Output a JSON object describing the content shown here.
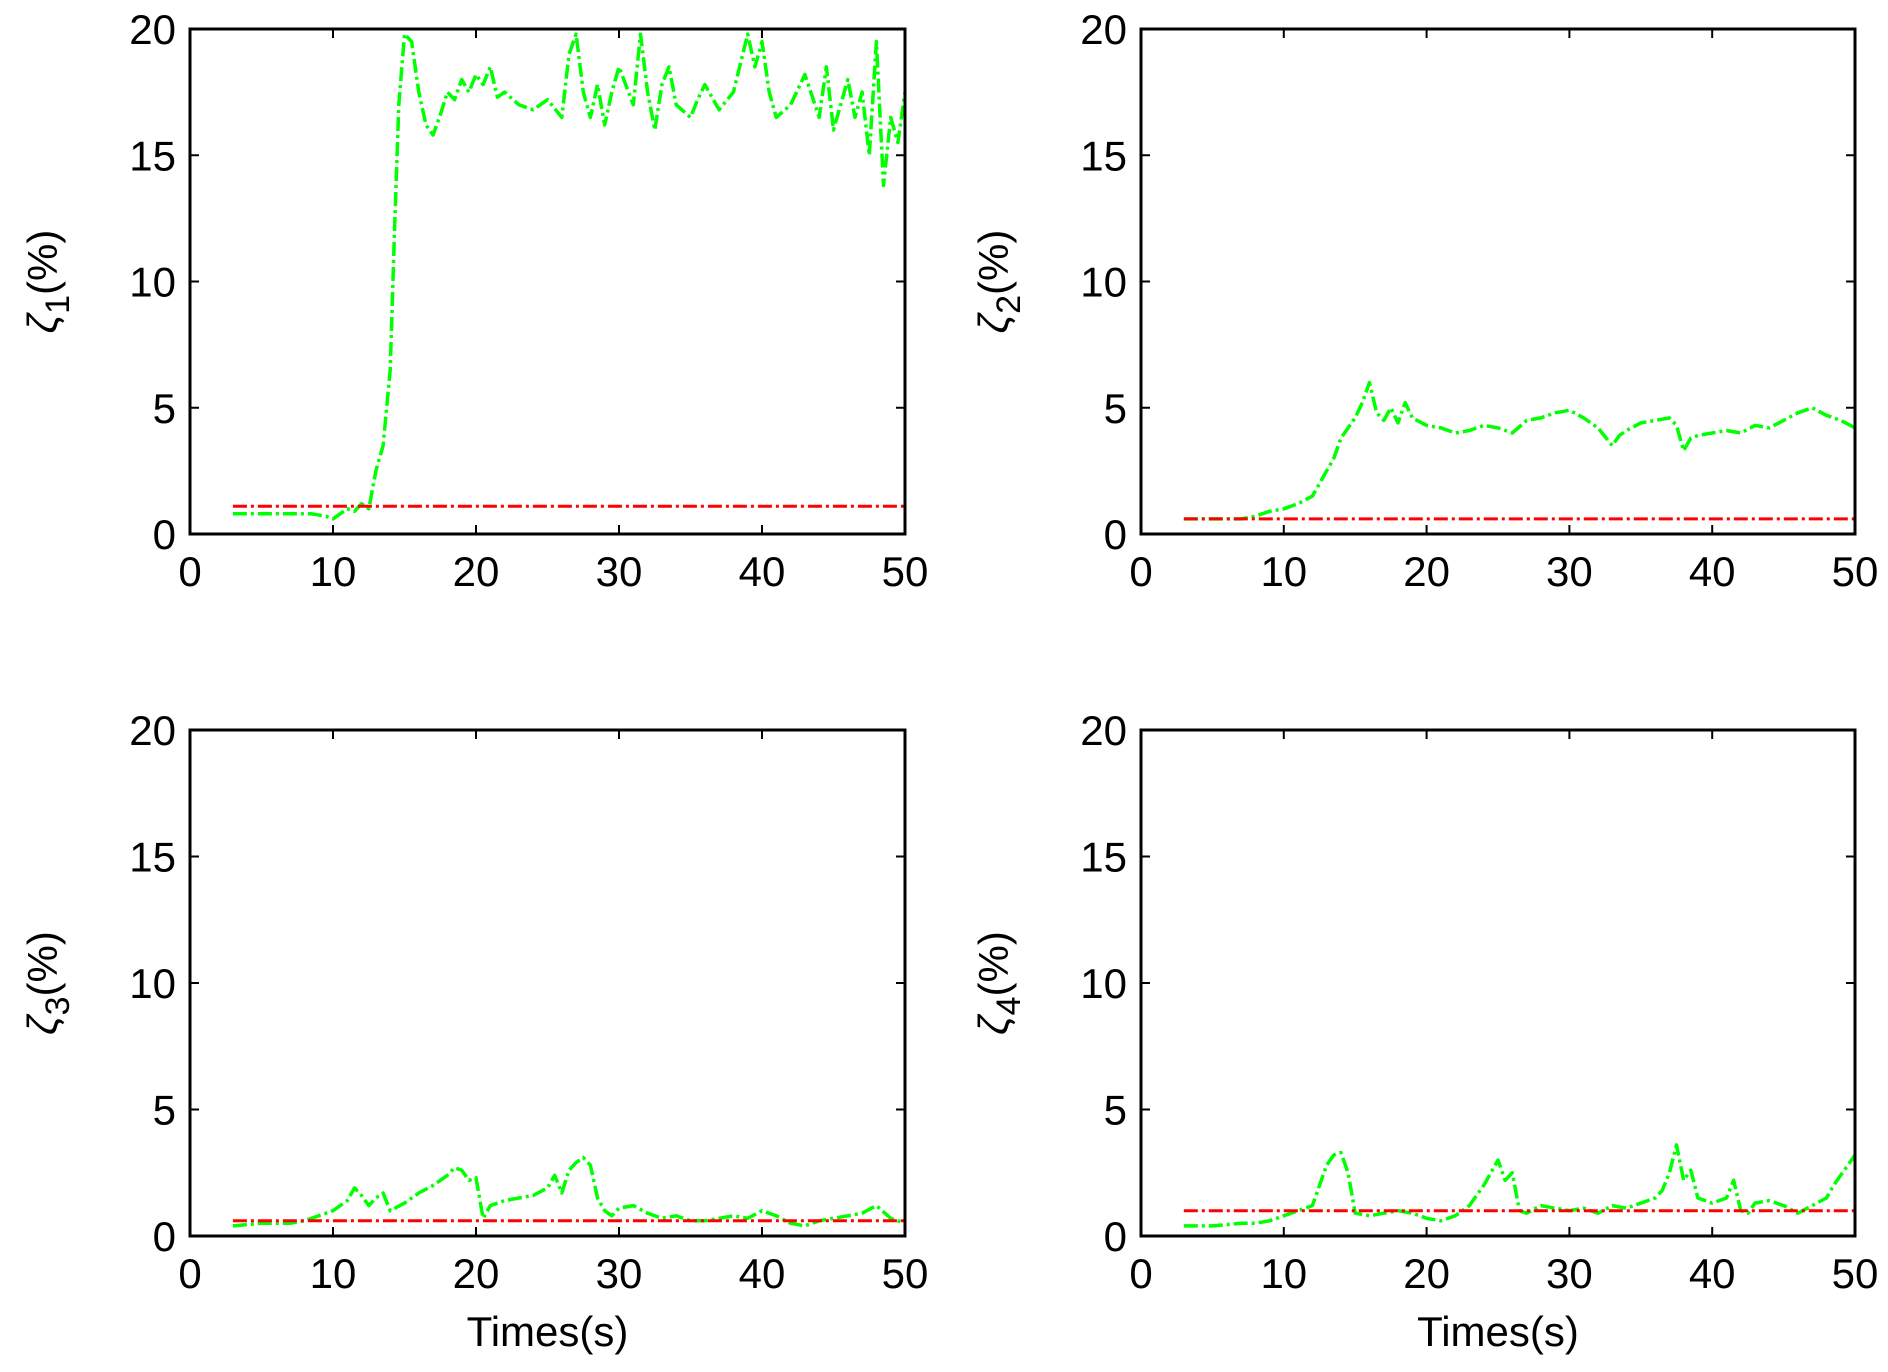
{
  "chart_data": [
    {
      "type": "line",
      "ylabel": "ζ₁(%)",
      "ylabel_symbol": "ζ",
      "ylabel_subscript": "1",
      "ylabel_unit": "(%)",
      "xlabel": "",
      "xlim": [
        0,
        50
      ],
      "ylim": [
        0,
        20
      ],
      "xticks": [
        "0",
        "10",
        "20",
        "30",
        "40",
        "50"
      ],
      "yticks": [
        "0",
        "5",
        "10",
        "15",
        "20"
      ],
      "grid": false,
      "series": [
        {
          "color": "#00ff00",
          "style": "dash-dot",
          "x": [
            3,
            5,
            7,
            8.5,
            9.5,
            10,
            10.5,
            11,
            11.5,
            12,
            12.5,
            13,
            13.5,
            14,
            14.3,
            14.6,
            15,
            15.5,
            16,
            16.5,
            17,
            17.5,
            18,
            18.5,
            19,
            19.5,
            20,
            20.5,
            21,
            21.5,
            22,
            23,
            24,
            25,
            26,
            26.5,
            27,
            27.5,
            28,
            28.5,
            29,
            29.5,
            30,
            31,
            31.5,
            32,
            32.5,
            33,
            33.5,
            34,
            35,
            35.5,
            36,
            37,
            38,
            39,
            39.5,
            40,
            40.5,
            41,
            42,
            43,
            44,
            44.5,
            45,
            46,
            46.5,
            47,
            47.5,
            48,
            48.5,
            49,
            49.5,
            50
          ],
          "y": [
            0.8,
            0.8,
            0.8,
            0.8,
            0.7,
            0.6,
            0.8,
            1.0,
            0.9,
            1.2,
            1.0,
            2.5,
            3.5,
            6.5,
            12.0,
            17.0,
            19.8,
            19.5,
            17.5,
            16.2,
            15.8,
            16.6,
            17.5,
            17.2,
            18.0,
            17.5,
            18.2,
            17.8,
            18.5,
            17.3,
            17.5,
            17.0,
            16.8,
            17.2,
            16.5,
            19.0,
            19.8,
            17.5,
            16.5,
            17.8,
            16.2,
            17.5,
            18.5,
            17.0,
            19.8,
            17.5,
            16.0,
            17.8,
            18.5,
            17.0,
            16.5,
            17.2,
            17.8,
            16.8,
            17.5,
            19.8,
            18.5,
            19.5,
            17.5,
            16.5,
            17.0,
            18.2,
            16.5,
            18.5,
            16.0,
            18.0,
            16.5,
            17.5,
            15.0,
            19.5,
            13.8,
            16.5,
            15.5,
            17.5
          ]
        },
        {
          "color": "#ff0000",
          "style": "dash-dot",
          "x": [
            3,
            50
          ],
          "y": [
            1.1,
            1.1
          ]
        }
      ]
    },
    {
      "type": "line",
      "ylabel": "ζ₂(%)",
      "ylabel_symbol": "ζ",
      "ylabel_subscript": "2",
      "ylabel_unit": "(%)",
      "xlabel": "",
      "xlim": [
        0,
        50
      ],
      "ylim": [
        0,
        20
      ],
      "xticks": [
        "0",
        "10",
        "20",
        "30",
        "40",
        "50"
      ],
      "yticks": [
        "0",
        "5",
        "10",
        "15",
        "20"
      ],
      "grid": false,
      "series": [
        {
          "color": "#00ff00",
          "style": "dash-dot",
          "x": [
            3,
            5,
            7,
            8,
            9,
            10,
            11,
            12,
            13,
            13.5,
            14,
            14.5,
            15,
            15.5,
            16,
            16.5,
            17,
            17.5,
            18,
            18.5,
            19,
            20,
            21,
            22,
            23,
            24,
            25,
            26,
            27,
            28,
            29,
            30,
            31,
            32,
            33,
            33.5,
            34,
            35,
            36,
            37,
            37.5,
            38,
            38.5,
            39,
            40,
            41,
            42,
            43,
            44,
            45,
            46,
            47,
            48,
            49,
            50
          ],
          "y": [
            0.6,
            0.6,
            0.6,
            0.7,
            0.9,
            1.0,
            1.2,
            1.5,
            2.5,
            3.0,
            3.8,
            4.2,
            4.6,
            5.2,
            6.0,
            4.8,
            4.5,
            5.0,
            4.4,
            5.2,
            4.6,
            4.3,
            4.2,
            4.0,
            4.1,
            4.3,
            4.2,
            4.0,
            4.5,
            4.6,
            4.8,
            4.9,
            4.6,
            4.2,
            3.5,
            3.9,
            4.1,
            4.4,
            4.5,
            4.6,
            4.3,
            3.3,
            3.8,
            3.9,
            4.0,
            4.1,
            4.0,
            4.3,
            4.2,
            4.5,
            4.8,
            5.0,
            4.7,
            4.5,
            4.2
          ]
        },
        {
          "color": "#ff0000",
          "style": "dash-dot",
          "x": [
            3,
            50
          ],
          "y": [
            0.6,
            0.6
          ]
        }
      ]
    },
    {
      "type": "line",
      "ylabel": "ζ₃(%)",
      "ylabel_symbol": "ζ",
      "ylabel_subscript": "3",
      "ylabel_unit": "(%)",
      "xlabel": "Times(s)",
      "xlim": [
        0,
        50
      ],
      "ylim": [
        0,
        20
      ],
      "xticks": [
        "0",
        "10",
        "20",
        "30",
        "40",
        "50"
      ],
      "yticks": [
        "0",
        "5",
        "10",
        "15",
        "20"
      ],
      "grid": false,
      "series": [
        {
          "color": "#00ff00",
          "style": "dash-dot",
          "x": [
            3,
            5,
            7,
            8,
            9,
            10,
            11,
            11.5,
            12,
            12.5,
            13,
            13.5,
            14,
            15,
            16,
            17,
            18,
            18.5,
            19,
            19.5,
            20,
            20.5,
            21,
            22,
            23,
            24,
            25,
            25.5,
            26,
            26.5,
            27,
            27.5,
            28,
            28.5,
            29,
            29.5,
            30,
            31,
            32,
            33,
            34,
            35,
            36,
            37,
            38,
            39,
            40,
            41,
            42,
            43,
            44,
            45,
            46,
            47,
            48,
            49,
            50
          ],
          "y": [
            0.4,
            0.5,
            0.5,
            0.6,
            0.8,
            1.0,
            1.4,
            1.9,
            1.6,
            1.2,
            1.5,
            1.7,
            1.0,
            1.3,
            1.7,
            2.0,
            2.4,
            2.7,
            2.6,
            2.2,
            2.3,
            0.7,
            1.2,
            1.4,
            1.5,
            1.6,
            1.9,
            2.4,
            1.7,
            2.6,
            2.9,
            3.1,
            2.8,
            1.5,
            1.0,
            0.8,
            1.1,
            1.2,
            0.9,
            0.7,
            0.8,
            0.6,
            0.6,
            0.7,
            0.8,
            0.7,
            1.0,
            0.8,
            0.5,
            0.4,
            0.6,
            0.7,
            0.8,
            0.9,
            1.2,
            0.7,
            0.5
          ]
        },
        {
          "color": "#ff0000",
          "style": "dash-dot",
          "x": [
            3,
            50
          ],
          "y": [
            0.6,
            0.6
          ]
        }
      ]
    },
    {
      "type": "line",
      "ylabel": "ζ₄(%)",
      "ylabel_symbol": "ζ",
      "ylabel_subscript": "4",
      "ylabel_unit": "(%)",
      "xlabel": "Times(s)",
      "xlim": [
        0,
        50
      ],
      "ylim": [
        0,
        20
      ],
      "xticks": [
        "0",
        "10",
        "20",
        "30",
        "40",
        "50"
      ],
      "yticks": [
        "0",
        "5",
        "10",
        "15",
        "20"
      ],
      "grid": false,
      "series": [
        {
          "color": "#00ff00",
          "style": "dash-dot",
          "x": [
            3,
            5,
            7,
            8,
            9,
            10,
            11,
            12,
            12.5,
            13,
            13.5,
            14,
            14.5,
            15,
            16,
            17,
            18,
            19,
            20,
            21,
            22,
            23,
            24,
            24.5,
            25,
            25.5,
            26,
            26.5,
            27,
            28,
            29,
            30,
            31,
            32,
            33,
            34,
            35,
            36,
            36.5,
            37,
            37.5,
            38,
            38.5,
            39,
            39.5,
            40,
            41,
            41.5,
            42,
            42.5,
            43,
            44,
            45,
            46,
            47,
            48,
            48.5,
            49,
            49.5,
            50
          ],
          "y": [
            0.4,
            0.4,
            0.5,
            0.5,
            0.6,
            0.8,
            1.0,
            1.2,
            2.0,
            2.8,
            3.2,
            3.3,
            2.5,
            0.9,
            0.8,
            0.9,
            1.0,
            0.9,
            0.7,
            0.6,
            0.8,
            1.2,
            2.0,
            2.5,
            3.0,
            2.2,
            2.5,
            1.0,
            0.9,
            1.2,
            1.1,
            1.0,
            1.1,
            0.9,
            1.2,
            1.1,
            1.3,
            1.5,
            1.8,
            2.5,
            3.6,
            2.2,
            2.6,
            1.5,
            1.4,
            1.3,
            1.5,
            2.2,
            1.0,
            0.9,
            1.3,
            1.4,
            1.2,
            0.9,
            1.2,
            1.5,
            2.0,
            2.4,
            2.8,
            3.2
          ]
        },
        {
          "color": "#ff0000",
          "style": "dash-dot",
          "x": [
            3,
            50
          ],
          "y": [
            1.0,
            1.0
          ]
        }
      ]
    }
  ]
}
